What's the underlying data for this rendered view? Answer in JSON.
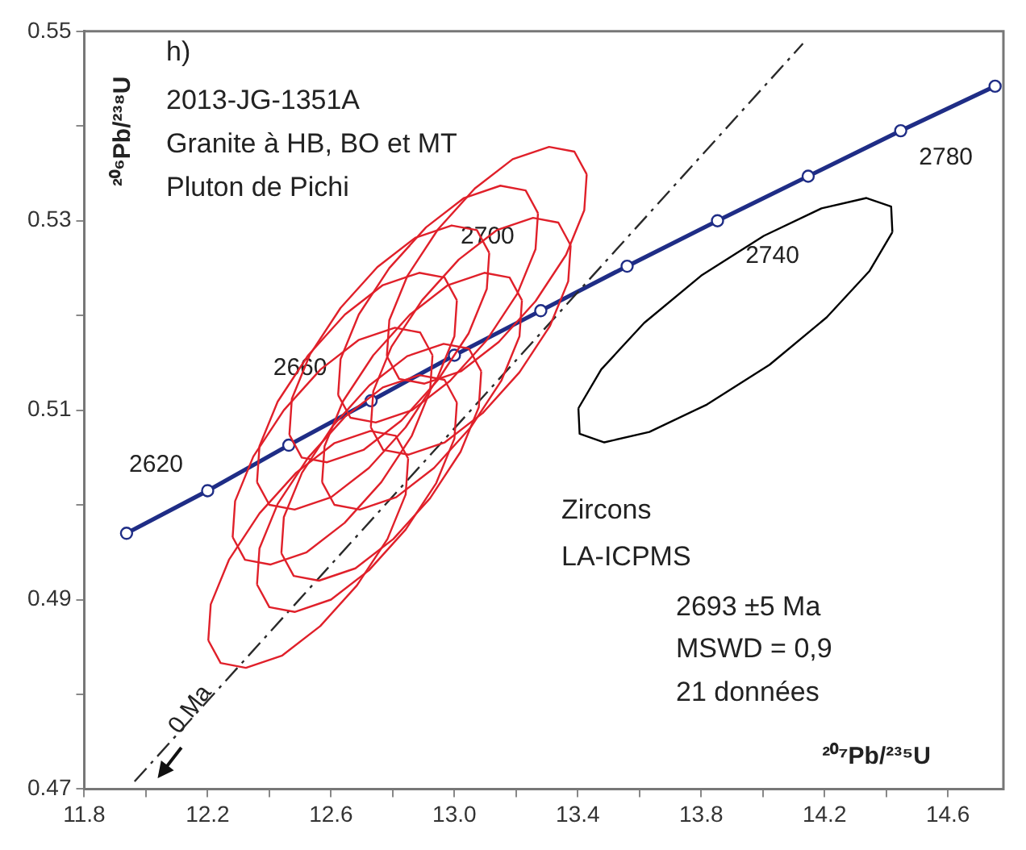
{
  "chart_data": {
    "type": "line",
    "xlabel": "²⁰⁷Pb/²³⁵U",
    "ylabel": "²⁰⁶Pb/²³⁸U",
    "xlim": [
      11.8,
      14.78
    ],
    "ylim": [
      0.47,
      0.55
    ],
    "xticks": [
      11.8,
      {
        "value": 12,
        "label": null
      },
      12.2,
      {
        "value": 12.4,
        "label": null
      },
      12.6,
      {
        "value": 12.8,
        "label": null
      },
      {
        "value": 13,
        "label": "13.0"
      },
      {
        "value": 13.2,
        "label": null
      },
      13.4,
      {
        "value": 13.6,
        "label": null
      },
      13.8,
      {
        "value": 14,
        "label": null
      },
      14.2,
      {
        "value": 14.4,
        "label": null
      },
      14.6
    ],
    "yticks": [
      0.47,
      {
        "value": 0.48,
        "label": null
      },
      0.49,
      {
        "value": 0.5,
        "label": null
      },
      0.51,
      {
        "value": 0.52,
        "label": null
      },
      0.53,
      {
        "value": 0.54,
        "label": null
      },
      0.55
    ],
    "grid": false,
    "legend": false,
    "annotations": [
      "h)",
      "2013-JG-1351A",
      "Granite à HB, BO et MT",
      "Pluton de Pichi",
      "Zircons",
      "LA-ICPMS",
      "2693 ±5 Ma",
      "MSWD = 0,9",
      "21 données",
      "0 Ma",
      {
        "text": "2620",
        "x": 12.2,
        "y": 0.5015
      },
      {
        "text": "2660",
        "x": 12.73,
        "y": 0.511
      },
      {
        "text": "2700",
        "x": 13.28,
        "y": 0.5205
      },
      {
        "text": "2740",
        "x": 13.853,
        "y": 0.53
      },
      {
        "text": "2780",
        "x": 14.447,
        "y": 0.5395
      }
    ],
    "series": [
      {
        "color": "#e0202a",
        "marker": "none",
        "x": [
          12.781,
          12.789,
          12.848,
          12.947,
          13.066,
          13.189,
          13.307,
          13.389,
          13.429
        ],
        "values": [
          0.5157,
          0.5195,
          0.5242,
          0.5291,
          0.5334,
          0.5365,
          0.5378,
          0.5373,
          0.5349
        ]
      },
      {
        "color": "#e0202a",
        "marker": "none",
        "x": [
          12.781,
          12.821,
          12.903,
          13.021,
          13.144,
          13.263,
          13.362,
          13.421,
          13.429
        ],
        "values": [
          0.5157,
          0.5133,
          0.5128,
          0.5141,
          0.5172,
          0.5215,
          0.5264,
          0.5311,
          0.5349
        ]
      },
      {
        "color": "#e0202a",
        "marker": "none",
        "x": [
          12.623,
          12.631,
          12.69,
          12.789,
          12.908,
          13.031,
          13.149,
          13.231,
          13.271
        ],
        "values": [
          0.5116,
          0.5154,
          0.5201,
          0.525,
          0.5293,
          0.5324,
          0.5337,
          0.5332,
          0.5308
        ]
      },
      {
        "color": "#e0202a",
        "marker": "none",
        "x": [
          12.623,
          12.663,
          12.745,
          12.863,
          12.986,
          13.105,
          13.204,
          13.263,
          13.271
        ],
        "values": [
          0.5116,
          0.5092,
          0.5087,
          0.51,
          0.5131,
          0.5174,
          0.5223,
          0.527,
          0.5308
        ]
      },
      {
        "color": "#e0202a",
        "marker": "none",
        "x": [
          12.465,
          12.473,
          12.532,
          12.631,
          12.75,
          12.873,
          12.991,
          13.073,
          13.113
        ],
        "values": [
          0.5074,
          0.5112,
          0.5159,
          0.5208,
          0.5251,
          0.5282,
          0.5295,
          0.529,
          0.5266
        ]
      },
      {
        "color": "#e0202a",
        "marker": "none",
        "x": [
          12.465,
          12.505,
          12.587,
          12.705,
          12.828,
          12.947,
          13.046,
          13.105,
          13.113
        ],
        "values": [
          0.5074,
          0.505,
          0.5045,
          0.5058,
          0.5089,
          0.5132,
          0.5181,
          0.5228,
          0.5266
        ]
      },
      {
        "color": "#e0202a",
        "marker": "none",
        "x": [
          12.36,
          12.368,
          12.427,
          12.526,
          12.645,
          12.768,
          12.886,
          12.968,
          13.008
        ],
        "values": [
          0.5024,
          0.5062,
          0.5109,
          0.5158,
          0.5201,
          0.5232,
          0.5245,
          0.524,
          0.5216
        ]
      },
      {
        "color": "#e0202a",
        "marker": "none",
        "x": [
          12.36,
          12.4,
          12.482,
          12.6,
          12.723,
          12.842,
          12.941,
          13.0,
          13.008
        ],
        "values": [
          0.5024,
          0.5,
          0.4995,
          0.5008,
          0.5039,
          0.5082,
          0.5131,
          0.5178,
          0.5216
        ]
      },
      {
        "color": "#e0202a",
        "marker": "none",
        "x": [
          12.571,
          12.579,
          12.638,
          12.737,
          12.856,
          12.979,
          13.097,
          13.179,
          13.219
        ],
        "values": [
          0.5024,
          0.5062,
          0.5109,
          0.5158,
          0.5201,
          0.5232,
          0.5245,
          0.524,
          0.5216
        ]
      },
      {
        "color": "#e0202a",
        "marker": "none",
        "x": [
          12.571,
          12.611,
          12.693,
          12.811,
          12.934,
          13.053,
          13.152,
          13.211,
          13.219
        ],
        "values": [
          0.5024,
          0.5,
          0.4995,
          0.5008,
          0.5039,
          0.5082,
          0.5131,
          0.5178,
          0.5216
        ]
      },
      {
        "color": "#e0202a",
        "marker": "none",
        "x": [
          12.281,
          12.289,
          12.348,
          12.447,
          12.566,
          12.689,
          12.807,
          12.889,
          12.929
        ],
        "values": [
          0.4966,
          0.5004,
          0.5051,
          0.51,
          0.5143,
          0.5174,
          0.5187,
          0.5182,
          0.5158
        ]
      },
      {
        "color": "#e0202a",
        "marker": "none",
        "x": [
          12.281,
          12.321,
          12.403,
          12.521,
          12.644,
          12.763,
          12.862,
          12.921,
          12.929
        ],
        "values": [
          0.4966,
          0.4942,
          0.4937,
          0.495,
          0.4981,
          0.5024,
          0.5073,
          0.512,
          0.5158
        ]
      },
      {
        "color": "#e0202a",
        "marker": "none",
        "x": [
          12.439,
          12.447,
          12.506,
          12.605,
          12.724,
          12.847,
          12.965,
          13.047,
          13.087
        ],
        "values": [
          0.4949,
          0.4987,
          0.5034,
          0.5083,
          0.5126,
          0.5157,
          0.517,
          0.5165,
          0.5141
        ]
      },
      {
        "color": "#e0202a",
        "marker": "none",
        "x": [
          12.439,
          12.479,
          12.561,
          12.679,
          12.802,
          12.921,
          13.02,
          13.079,
          13.087
        ],
        "values": [
          0.4949,
          0.4925,
          0.492,
          0.4933,
          0.4964,
          0.5007,
          0.5056,
          0.5103,
          0.5141
        ]
      },
      {
        "color": "#e0202a",
        "marker": "none",
        "x": [
          12.202,
          12.21,
          12.269,
          12.368,
          12.487,
          12.61,
          12.728,
          12.81,
          12.85
        ],
        "values": [
          0.4857,
          0.4895,
          0.4942,
          0.4991,
          0.5034,
          0.5065,
          0.5078,
          0.5073,
          0.5049
        ]
      },
      {
        "color": "#e0202a",
        "marker": "none",
        "x": [
          12.202,
          12.242,
          12.324,
          12.442,
          12.565,
          12.684,
          12.783,
          12.842,
          12.85
        ],
        "values": [
          0.4857,
          0.4833,
          0.4828,
          0.4841,
          0.4872,
          0.4915,
          0.4964,
          0.5011,
          0.5049
        ]
      },
      {
        "color": "#e0202a",
        "marker": "none",
        "x": [
          12.729,
          12.737,
          12.796,
          12.895,
          13.014,
          13.137,
          13.255,
          13.337,
          13.377
        ],
        "values": [
          0.5082,
          0.512,
          0.5167,
          0.5216,
          0.5259,
          0.529,
          0.5303,
          0.5298,
          0.5274
        ]
      },
      {
        "color": "#e0202a",
        "marker": "none",
        "x": [
          12.729,
          12.769,
          12.851,
          12.969,
          13.092,
          13.211,
          13.31,
          13.369,
          13.377
        ],
        "values": [
          0.5082,
          0.5058,
          0.5053,
          0.5066,
          0.5097,
          0.514,
          0.5189,
          0.5236,
          0.5274
        ]
      },
      {
        "color": "#e0202a",
        "marker": "none",
        "x": [
          12.36,
          12.368,
          12.427,
          12.526,
          12.645,
          12.768,
          12.886,
          12.968,
          13.008
        ],
        "values": [
          0.4916,
          0.4954,
          0.5001,
          0.505,
          0.5093,
          0.5124,
          0.5137,
          0.5132,
          0.5108
        ]
      },
      {
        "color": "#e0202a",
        "marker": "none",
        "x": [
          12.36,
          12.4,
          12.482,
          12.6,
          12.723,
          12.842,
          12.941,
          13.0,
          13.008
        ],
        "values": [
          0.4916,
          0.4892,
          0.4887,
          0.49,
          0.4931,
          0.4974,
          0.5023,
          0.507,
          0.5108
        ]
      },
      {
        "color": "#000000",
        "marker": "none",
        "x": [
          13.402,
          13.476,
          13.615,
          13.8,
          14.003,
          14.19,
          14.336,
          14.416,
          14.42
        ],
        "values": [
          0.5102,
          0.5143,
          0.5192,
          0.5242,
          0.5284,
          0.5313,
          0.5324,
          0.5315,
          0.5288
        ]
      },
      {
        "color": "#000000",
        "marker": "none",
        "x": [
          13.402,
          13.406,
          13.486,
          13.632,
          13.819,
          14.022,
          14.207,
          14.346,
          14.42
        ],
        "values": [
          0.5102,
          0.5075,
          0.5066,
          0.5077,
          0.5106,
          0.5148,
          0.5198,
          0.5247,
          0.5288
        ]
      },
      {
        "color": "#2a2a2a",
        "marker": "none",
        "line_style": "dashed",
        "x": [
          11.963,
          14.13
        ],
        "values": [
          0.4708,
          0.5487
        ]
      },
      {
        "color": "#1f2d86",
        "marker": "circle",
        "x": [
          11.937,
          12.2,
          12.463,
          12.73,
          13.0,
          13.28,
          13.56,
          13.853,
          14.147,
          14.447,
          14.753
        ],
        "values": [
          0.497,
          0.5015,
          0.5063,
          0.511,
          0.5158,
          0.5205,
          0.5252,
          0.53,
          0.5347,
          0.5395,
          0.5442
        ]
      }
    ]
  }
}
